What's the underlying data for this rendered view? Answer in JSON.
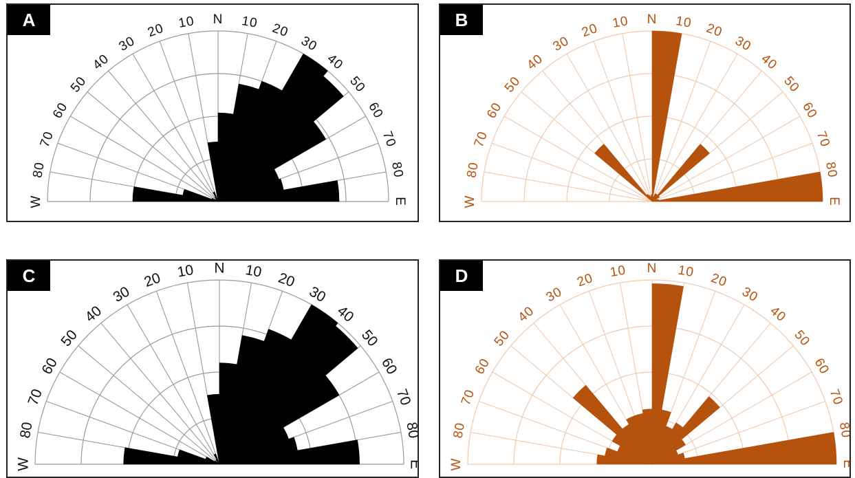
{
  "colors": {
    "black_panel": "#000000",
    "orange_panel": "#b5520e",
    "orange_grid": "#f0c9ae",
    "grid": "#999999"
  },
  "chart_data": [
    {
      "type": "rose",
      "panel_label": "A",
      "color": "#000000",
      "bin_edges_deg": [
        -90,
        -80,
        -70,
        -60,
        -50,
        -40,
        -30,
        -20,
        -10,
        0,
        10,
        20,
        30,
        40,
        50,
        60,
        70,
        80,
        90
      ],
      "tick_labels": [
        "W",
        "80",
        "70",
        "60",
        "50",
        "40",
        "30",
        "20",
        "10",
        "N",
        "10",
        "20",
        "30",
        "40",
        "50",
        "60",
        "70",
        "80",
        "E"
      ],
      "radial_rings": 4,
      "values": [
        0.5,
        0.21,
        0.04,
        0.02,
        0,
        0.03,
        0.06,
        0.0,
        0.35,
        0.52,
        0.7,
        0.75,
        1.0,
        0.96,
        0.73,
        0.38,
        0.39,
        0.71
      ]
    },
    {
      "type": "rose",
      "panel_label": "B",
      "color": "#b5520e",
      "bin_edges_deg": [
        -90,
        -80,
        -70,
        -60,
        -50,
        -40,
        -30,
        -20,
        -10,
        0,
        10,
        20,
        30,
        40,
        50,
        60,
        70,
        80,
        90
      ],
      "tick_labels": [
        "W",
        "80",
        "70",
        "60",
        "50",
        "40",
        "30",
        "20",
        "10",
        "N",
        "10",
        "20",
        "30",
        "40",
        "50",
        "60",
        "70",
        "80",
        "E"
      ],
      "radial_rings": 4,
      "values": [
        0,
        0,
        0,
        0,
        0.44,
        0.05,
        0.04,
        0.03,
        0.04,
        1.0,
        0.03,
        0.05,
        0.05,
        0.44,
        0.05,
        0.03,
        0.04,
        1.0
      ]
    },
    {
      "type": "rose",
      "panel_label": "C",
      "color": "#000000",
      "bin_edges_deg": [
        -90,
        -80,
        -70,
        -60,
        -50,
        -40,
        -30,
        -20,
        -10,
        0,
        10,
        20,
        30,
        40,
        50,
        60,
        70,
        80,
        90
      ],
      "tick_labels": [
        "W",
        "80",
        "70",
        "60",
        "50",
        "40",
        "30",
        "20",
        "10",
        "N",
        "10",
        "20",
        "30",
        "40",
        "50",
        "60",
        "70",
        "80",
        "E"
      ],
      "radial_rings": 4,
      "values": [
        0.52,
        0.23,
        0.08,
        0.03,
        0.0,
        0.03,
        0.06,
        0.0,
        0.38,
        0.55,
        0.71,
        0.78,
        1.0,
        0.98,
        0.75,
        0.4,
        0.43,
        0.76
      ]
    },
    {
      "type": "rose",
      "panel_label": "D",
      "color": "#b5520e",
      "bin_edges_deg": [
        -90,
        -80,
        -70,
        -60,
        -50,
        -40,
        -30,
        -20,
        -10,
        0,
        10,
        20,
        30,
        40,
        50,
        60,
        70,
        80,
        90
      ],
      "tick_labels": [
        "W",
        "80",
        "70",
        "60",
        "50",
        "40",
        "30",
        "20",
        "10",
        "N",
        "10",
        "20",
        "30",
        "40",
        "50",
        "60",
        "70",
        "80",
        "E"
      ],
      "radial_rings": 4,
      "values": [
        0.3,
        0.26,
        0.2,
        0.25,
        0.56,
        0.25,
        0.28,
        0.28,
        0.3,
        0.98,
        0.3,
        0.22,
        0.26,
        0.48,
        0.21,
        0.15,
        0.18,
        1.0
      ]
    }
  ]
}
